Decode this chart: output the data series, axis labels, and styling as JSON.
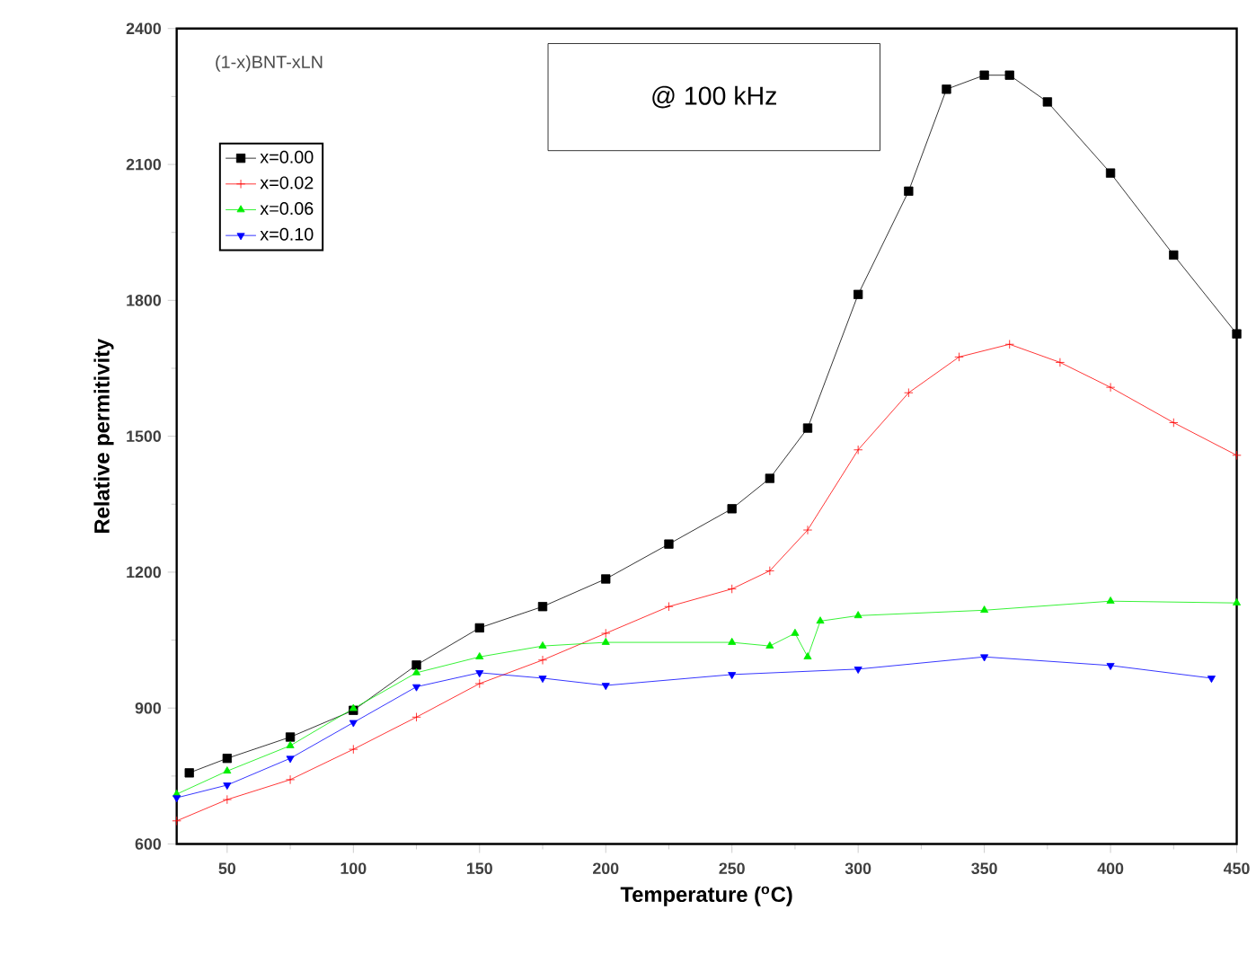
{
  "chart_data": {
    "type": "line",
    "xlabel": "Temperature ($^{o}$C)",
    "ylabel": "Relative permitivity",
    "legend_title": "(1-x)BNT-xLN",
    "annotations": [
      "@ 100 kHz"
    ],
    "xlim": [
      30,
      450
    ],
    "xticks": [
      50,
      100,
      150,
      200,
      250,
      300,
      350,
      400,
      450
    ],
    "ylim": [
      600,
      2400
    ],
    "yticks": [
      600,
      900,
      1200,
      1500,
      1800,
      2100,
      2400
    ],
    "legend": "top left",
    "line_style": "solid",
    "series": [
      {
        "name": "x=0.00",
        "color": "#000000",
        "marker": "square",
        "x": [
          35,
          50,
          75,
          100,
          125,
          150,
          175,
          200,
          225,
          250,
          265,
          280,
          300,
          320,
          335,
          350,
          360,
          375,
          400,
          425,
          450
        ],
        "values": [
          757,
          789,
          836,
          895,
          995,
          1077,
          1124,
          1185,
          1262,
          1340,
          1407,
          1518,
          1813,
          2041,
          2266,
          2297,
          2297,
          2238,
          2081,
          1900,
          1726
        ]
      },
      {
        "name": "x=0.02",
        "color": "#ff0000",
        "marker": "cross",
        "x": [
          30,
          50,
          75,
          100,
          125,
          150,
          175,
          200,
          225,
          250,
          265,
          280,
          300,
          320,
          340,
          360,
          380,
          400,
          425,
          450
        ],
        "values": [
          651,
          698,
          742,
          809,
          880,
          954,
          1006,
          1065,
          1124,
          1163,
          1203,
          1293,
          1470,
          1596,
          1675,
          1703,
          1663,
          1608,
          1530,
          1458
        ]
      },
      {
        "name": "x=0.06",
        "color": "#00ee00",
        "marker": "triangle",
        "x": [
          30,
          50,
          75,
          100,
          125,
          150,
          175,
          200,
          250,
          265,
          275,
          280,
          285,
          300,
          350,
          400,
          450
        ],
        "values": [
          710,
          761,
          817,
          899,
          978,
          1013,
          1037,
          1045,
          1045,
          1037,
          1065,
          1013,
          1092,
          1104,
          1116,
          1136,
          1132
        ]
      },
      {
        "name": "x=0.10",
        "color": "#0000ff",
        "marker": "triangle-down",
        "x": [
          30,
          50,
          75,
          100,
          125,
          150,
          175,
          200,
          250,
          300,
          350,
          400,
          440
        ],
        "values": [
          702,
          730,
          789,
          868,
          947,
          978,
          966,
          950,
          974,
          986,
          1013,
          994,
          966
        ]
      }
    ]
  }
}
